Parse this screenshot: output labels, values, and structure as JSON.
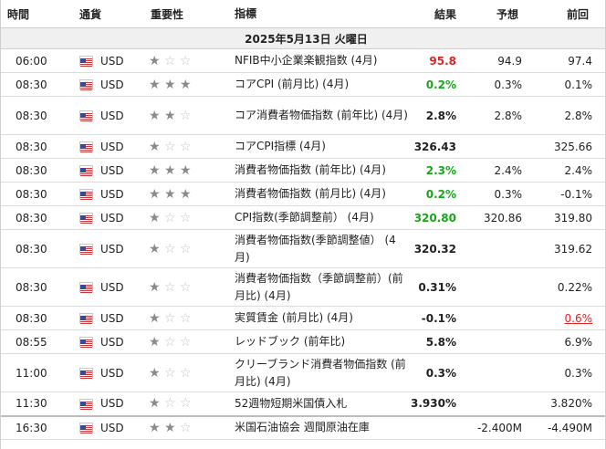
{
  "headers": {
    "time": "時間",
    "currency": "通貨",
    "importance": "重要性",
    "indicator": "指標",
    "actual": "結果",
    "forecast": "予想",
    "previous": "前回"
  },
  "date_label": "2025年5月13日 火曜日",
  "colors": {
    "positive": "#17a817",
    "negative": "#e02424"
  },
  "rows": [
    {
      "time": "06:00",
      "currency": "USD",
      "stars": 1,
      "name": "NFIB中小企業楽観指数 (4月)",
      "actual": "95.8",
      "actual_color": "red",
      "forecast": "94.9",
      "previous": "97.4",
      "h": 26
    },
    {
      "time": "08:30",
      "currency": "USD",
      "stars": 3,
      "name": "コアCPI (前月比) (4月)",
      "actual": "0.2%",
      "actual_color": "green",
      "forecast": "0.3%",
      "previous": "0.1%",
      "h": 26
    },
    {
      "time": "08:30",
      "currency": "USD",
      "stars": 2,
      "name": "コア消費者物価指数 (前年比) (4月)",
      "actual": "2.8%",
      "actual_color": "",
      "forecast": "2.8%",
      "previous": "2.8%",
      "h": 42
    },
    {
      "time": "08:30",
      "currency": "USD",
      "stars": 1,
      "name": "コアCPI指標 (4月)",
      "actual": "326.43",
      "actual_color": "",
      "forecast": "",
      "previous": "325.66",
      "h": 26
    },
    {
      "time": "08:30",
      "currency": "USD",
      "stars": 3,
      "name": "消費者物価指数 (前年比) (4月)",
      "actual": "2.3%",
      "actual_color": "green",
      "forecast": "2.4%",
      "previous": "2.4%",
      "h": 26
    },
    {
      "time": "08:30",
      "currency": "USD",
      "stars": 3,
      "name": "消費者物価指数 (前月比) (4月)",
      "actual": "0.2%",
      "actual_color": "green",
      "forecast": "0.3%",
      "previous": "-0.1%",
      "h": 26
    },
    {
      "time": "08:30",
      "currency": "USD",
      "stars": 1,
      "name": "CPI指数(季節調整前） (4月)",
      "actual": "320.80",
      "actual_color": "green",
      "forecast": "320.86",
      "previous": "319.80",
      "h": 26
    },
    {
      "time": "08:30",
      "currency": "USD",
      "stars": 1,
      "name": "消費者物価指数(季節調整値） (4月)",
      "actual": "320.32",
      "actual_color": "",
      "forecast": "",
      "previous": "319.62",
      "h": 42
    },
    {
      "time": "08:30",
      "currency": "USD",
      "stars": 1,
      "name": "消費者物価指数（季節調整前）(前月比) (4月)",
      "actual": "0.31%",
      "actual_color": "",
      "forecast": "",
      "previous": "0.22%",
      "h": 42
    },
    {
      "time": "08:30",
      "currency": "USD",
      "stars": 1,
      "name": "実質賃金 (前月比) (4月)",
      "actual": "-0.1%",
      "actual_color": "",
      "forecast": "",
      "previous": "0.6%",
      "previous_color": "red",
      "h": 26
    },
    {
      "time": "08:55",
      "currency": "USD",
      "stars": 1,
      "name": "レッドブック (前年比)",
      "actual": "5.8%",
      "actual_color": "",
      "forecast": "",
      "previous": "6.9%",
      "h": 26
    },
    {
      "time": "11:00",
      "currency": "USD",
      "stars": 1,
      "name": "クリーブランド消費者物価指数 (前月比) (4月)",
      "actual": "0.3%",
      "actual_color": "",
      "forecast": "",
      "previous": "0.3%",
      "h": 42
    },
    {
      "time": "11:30",
      "currency": "USD",
      "stars": 1,
      "name": "52週物短期米国債入札",
      "actual": "3.930%",
      "actual_color": "",
      "forecast": "",
      "previous": "3.820%",
      "h": 26
    },
    {
      "time": "16:30",
      "currency": "USD",
      "stars": 2,
      "name": "米国石油協会 週間原油在庫",
      "actual": "",
      "actual_color": "",
      "forecast": "-2.400M",
      "previous": "-4.490M",
      "h": 26
    }
  ]
}
